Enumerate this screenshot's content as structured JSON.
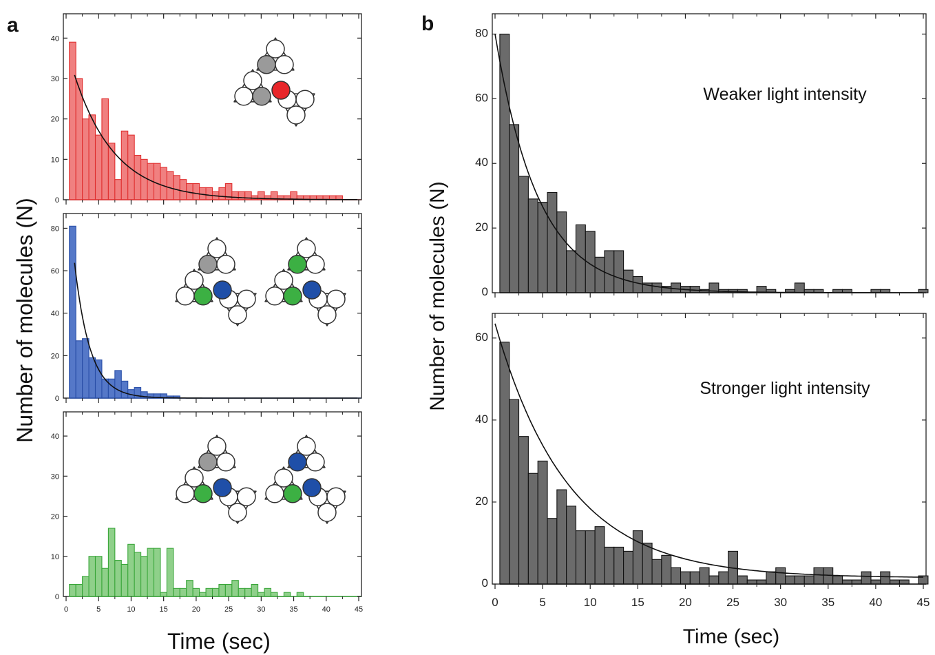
{
  "figure": {
    "panel_a_letter": "a",
    "panel_b_letter": "b",
    "colors": {
      "red_fill": "#f08080",
      "red_stroke": "#e03030",
      "blue_fill": "#5578c8",
      "blue_stroke": "#2a4fa8",
      "green_fill": "#8fd08a",
      "green_stroke": "#3aa63a",
      "gray_fill": "#6b6b6b",
      "gray_stroke": "#111111",
      "icon_red": "#e8262a",
      "icon_gray": "#9a9a9a",
      "icon_green": "#3cb043",
      "icon_blue": "#1f4fa8"
    },
    "icons": [
      "triangle-trimer-icon",
      "subunit-circle-icon"
    ]
  },
  "chart_data": [
    {
      "id": "a-red",
      "type": "bar",
      "panel": "a",
      "xlim": [
        0,
        45
      ],
      "ylim": [
        0,
        45
      ],
      "xticks": [
        0,
        5,
        10,
        15,
        20,
        25,
        30,
        35,
        40,
        45
      ],
      "yticks": [
        0,
        10,
        20,
        30,
        40
      ],
      "xlabel": "",
      "ylabel": "",
      "bin_width": 1,
      "bin_start": 0.5,
      "values": [
        39,
        30,
        20,
        21,
        16,
        25,
        14,
        5,
        17,
        16,
        11,
        10,
        9,
        9,
        8,
        7,
        6,
        5,
        4,
        4,
        3,
        3,
        2,
        3,
        4,
        2,
        2,
        2,
        1,
        2,
        1,
        2,
        1,
        1,
        2,
        1,
        1,
        1,
        1,
        1,
        1,
        1,
        0,
        0,
        0
      ],
      "fit": {
        "amplitude": 38,
        "rate": 0.16
      }
    },
    {
      "id": "a-blue",
      "type": "bar",
      "panel": "a",
      "xlim": [
        0,
        45
      ],
      "ylim": [
        0,
        85
      ],
      "xticks": [
        0,
        5,
        10,
        15,
        20,
        25,
        30,
        35,
        40,
        45
      ],
      "yticks": [
        0,
        20,
        40,
        60,
        80
      ],
      "xlabel": "",
      "ylabel": "",
      "bin_width": 1,
      "bin_start": 0.5,
      "values": [
        81,
        27,
        28,
        19,
        18,
        9,
        9,
        13,
        8,
        4,
        5,
        3,
        2,
        2,
        2,
        1,
        1,
        0,
        0,
        0,
        0,
        0,
        0,
        0,
        0,
        0,
        0,
        0,
        0,
        0,
        0,
        0,
        0,
        0,
        0,
        0,
        0,
        0,
        0,
        0,
        0,
        0,
        0,
        0
      ],
      "fit": {
        "amplitude": 110,
        "rate": 0.42
      }
    },
    {
      "id": "a-green",
      "type": "bar",
      "panel": "a",
      "xlim": [
        0,
        45
      ],
      "ylim": [
        0,
        45
      ],
      "xticks": [
        0,
        5,
        10,
        15,
        20,
        25,
        30,
        35,
        40,
        45
      ],
      "yticks": [
        0,
        10,
        20,
        30,
        40
      ],
      "xlabel": "Time (sec)",
      "ylabel": "",
      "bin_width": 1,
      "bin_start": 0.5,
      "values": [
        3,
        3,
        5,
        10,
        10,
        7,
        17,
        9,
        8,
        13,
        11,
        10,
        12,
        12,
        1,
        12,
        2,
        2,
        4,
        2,
        1,
        2,
        2,
        3,
        3,
        4,
        2,
        2,
        3,
        1,
        2,
        1,
        0,
        1,
        0,
        1,
        0,
        0,
        0,
        0,
        0,
        0,
        0,
        0,
        0
      ],
      "fit": null
    },
    {
      "id": "b-weak",
      "type": "bar",
      "panel": "b",
      "annotation": "Weaker light intensity",
      "xlim": [
        0,
        45
      ],
      "ylim": [
        0,
        85
      ],
      "xticks": [
        0,
        5,
        10,
        15,
        20,
        25,
        30,
        35,
        40,
        45
      ],
      "yticks": [
        0,
        20,
        40,
        60,
        80
      ],
      "xlabel": "",
      "ylabel": "",
      "bin_width": 1,
      "bin_start": 0.5,
      "values": [
        80,
        52,
        36,
        29,
        28,
        31,
        25,
        13,
        21,
        19,
        11,
        13,
        13,
        7,
        5,
        3,
        3,
        2,
        3,
        2,
        2,
        1,
        3,
        1,
        1,
        1,
        0,
        2,
        1,
        0,
        1,
        3,
        1,
        1,
        0,
        1,
        1,
        0,
        0,
        1,
        1,
        0,
        0,
        0,
        1
      ],
      "fit": {
        "amplitude": 80,
        "rate": 0.22
      }
    },
    {
      "id": "b-strong",
      "type": "bar",
      "panel": "b",
      "annotation": "Stronger light intensity",
      "xlim": [
        0,
        45
      ],
      "ylim": [
        0,
        65
      ],
      "xticks": [
        0,
        5,
        10,
        15,
        20,
        25,
        30,
        35,
        40,
        45
      ],
      "yticks": [
        0,
        20,
        40,
        60
      ],
      "xlabel": "Time (sec)",
      "ylabel": "",
      "bin_width": 1,
      "bin_start": 0.5,
      "values": [
        59,
        45,
        36,
        27,
        30,
        16,
        23,
        19,
        13,
        13,
        14,
        9,
        9,
        8,
        13,
        10,
        6,
        7,
        4,
        3,
        3,
        4,
        2,
        3,
        8,
        2,
        1,
        1,
        3,
        4,
        2,
        2,
        2,
        4,
        4,
        2,
        1,
        1,
        3,
        1,
        3,
        1,
        1,
        0,
        2
      ],
      "fit": {
        "amplitude": 62,
        "rate": 0.13,
        "offset": 1.5
      }
    }
  ],
  "shared_labels": {
    "panel_a_ylabel": "Number of molecules (N)",
    "panel_a_xlabel": "Time (sec)",
    "panel_b_ylabel": "Number of molecules (N)",
    "panel_b_xlabel": "Time (sec)"
  }
}
